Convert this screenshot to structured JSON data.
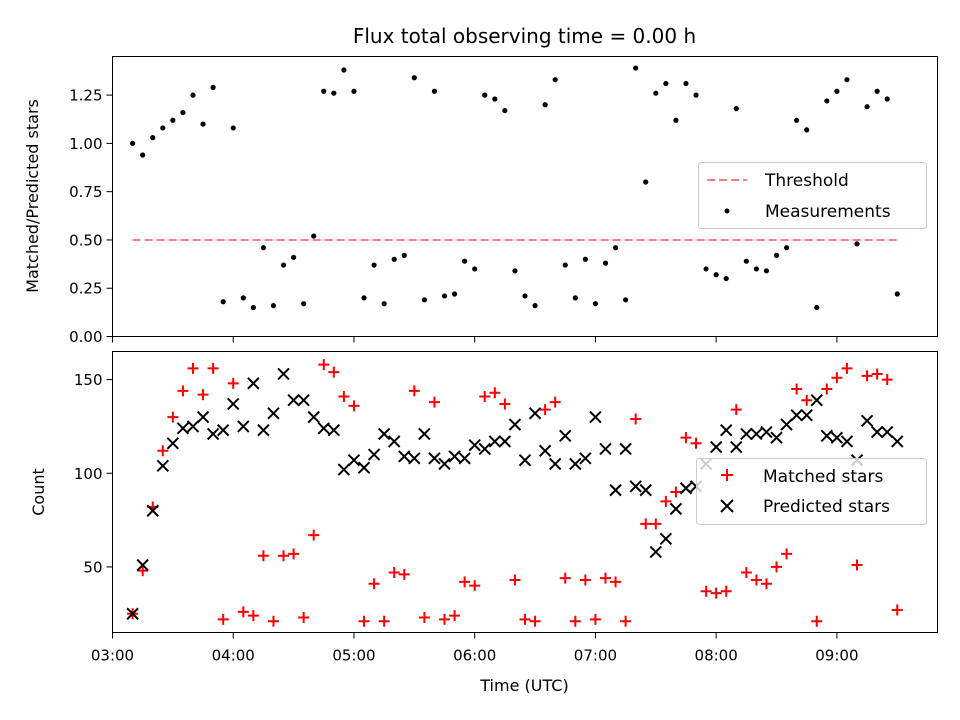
{
  "chart_data": [
    {
      "type": "scatter",
      "title": "Flux total observing time = 0.00 h",
      "xlabel": "",
      "ylabel": "Matched/Predicted stars",
      "ylim": [
        0,
        1.45
      ],
      "yticks": [
        "0.00",
        "0.25",
        "0.50",
        "0.75",
        "1.00",
        "1.25"
      ],
      "ytick_values": [
        0,
        0.25,
        0.5,
        0.75,
        1.0,
        1.25
      ],
      "legend_position": "center-right",
      "colors": {
        "threshold": "#ff7f7f",
        "measurements": "#000000"
      },
      "threshold": {
        "name": "Threshold",
        "x": [
          "03:10",
          "09:30"
        ],
        "y": 0.5
      },
      "series": [
        {
          "name": "Measurements",
          "x": [
            "03:10",
            "03:15",
            "03:20",
            "03:25",
            "03:30",
            "03:35",
            "03:40",
            "03:45",
            "03:50",
            "03:55",
            "04:00",
            "04:05",
            "04:10",
            "04:15",
            "04:20",
            "04:25",
            "04:30",
            "04:35",
            "04:40",
            "04:45",
            "04:50",
            "04:55",
            "05:00",
            "05:05",
            "05:10",
            "05:15",
            "05:20",
            "05:25",
            "05:30",
            "05:35",
            "05:40",
            "05:45",
            "05:50",
            "05:55",
            "06:00",
            "06:05",
            "06:10",
            "06:15",
            "06:20",
            "06:25",
            "06:30",
            "06:35",
            "06:40",
            "06:45",
            "06:50",
            "06:55",
            "07:00",
            "07:05",
            "07:10",
            "07:15",
            "07:20",
            "07:25",
            "07:30",
            "07:35",
            "07:40",
            "07:45",
            "07:50",
            "07:55",
            "08:00",
            "08:05",
            "08:10",
            "08:15",
            "08:20",
            "08:25",
            "08:30",
            "08:35",
            "08:40",
            "08:45",
            "08:50",
            "08:55",
            "09:00",
            "09:05",
            "09:10",
            "09:15",
            "09:20",
            "09:25",
            "09:30"
          ],
          "y": [
            1.0,
            0.94,
            1.03,
            1.08,
            1.12,
            1.16,
            1.25,
            1.1,
            1.29,
            0.18,
            1.08,
            0.2,
            0.15,
            0.46,
            0.16,
            0.37,
            0.41,
            0.17,
            0.52,
            1.27,
            1.26,
            1.38,
            1.27,
            0.2,
            0.37,
            0.17,
            0.4,
            0.42,
            1.34,
            0.19,
            1.27,
            0.21,
            0.22,
            0.39,
            0.35,
            1.25,
            1.23,
            1.17,
            0.34,
            0.21,
            0.16,
            1.2,
            1.33,
            0.37,
            0.2,
            0.4,
            0.17,
            0.38,
            0.46,
            0.19,
            1.39,
            0.8,
            1.26,
            1.31,
            1.12,
            1.31,
            1.25,
            0.35,
            0.32,
            0.3,
            1.18,
            0.39,
            0.35,
            0.34,
            0.42,
            0.46,
            1.12,
            1.07,
            0.15,
            1.22,
            1.27,
            1.33,
            0.48,
            1.19,
            1.27,
            1.23,
            0.22
          ]
        }
      ]
    },
    {
      "type": "scatter",
      "title": "",
      "xlabel": "Time (UTC)",
      "ylabel": "Count",
      "ylim": [
        15,
        165
      ],
      "yticks": [
        "50",
        "100",
        "150"
      ],
      "ytick_values": [
        50,
        100,
        150
      ],
      "xlim": [
        "03:00",
        "09:50"
      ],
      "xticks": [
        "03:00",
        "04:00",
        "05:00",
        "06:00",
        "07:00",
        "08:00",
        "09:00"
      ],
      "legend_position": "center-right",
      "colors": {
        "matched": "#ff0000",
        "predicted": "#000000"
      },
      "x": [
        "03:10",
        "03:15",
        "03:20",
        "03:25",
        "03:30",
        "03:35",
        "03:40",
        "03:45",
        "03:50",
        "03:55",
        "04:00",
        "04:05",
        "04:10",
        "04:15",
        "04:20",
        "04:25",
        "04:30",
        "04:35",
        "04:40",
        "04:45",
        "04:50",
        "04:55",
        "05:00",
        "05:05",
        "05:10",
        "05:15",
        "05:20",
        "05:25",
        "05:30",
        "05:35",
        "05:40",
        "05:45",
        "05:50",
        "05:55",
        "06:00",
        "06:05",
        "06:10",
        "06:15",
        "06:20",
        "06:25",
        "06:30",
        "06:35",
        "06:40",
        "06:45",
        "06:50",
        "06:55",
        "07:00",
        "07:05",
        "07:10",
        "07:15",
        "07:20",
        "07:25",
        "07:30",
        "07:35",
        "07:40",
        "07:45",
        "07:50",
        "07:55",
        "08:00",
        "08:05",
        "08:10",
        "08:15",
        "08:20",
        "08:25",
        "08:30",
        "08:35",
        "08:40",
        "08:45",
        "08:50",
        "08:55",
        "09:00",
        "09:05",
        "09:10",
        "09:15",
        "09:20",
        "09:25",
        "09:30"
      ],
      "series": [
        {
          "name": "Matched stars",
          "marker": "plus",
          "y": [
            25,
            48,
            82,
            112,
            130,
            144,
            156,
            142,
            156,
            22,
            148,
            26,
            24,
            56,
            21,
            56,
            57,
            23,
            67,
            158,
            154,
            141,
            136,
            21,
            41,
            21,
            47,
            46,
            144,
            23,
            138,
            22,
            24,
            42,
            40,
            141,
            143,
            137,
            43,
            22,
            21,
            134,
            138,
            44,
            21,
            43,
            22,
            44,
            42,
            21,
            129,
            73,
            73,
            85,
            90,
            119,
            116,
            37,
            36,
            37,
            134,
            47,
            43,
            41,
            50,
            57,
            145,
            139,
            21,
            145,
            151,
            156,
            51,
            152,
            153,
            150,
            27
          ]
        },
        {
          "name": "Predicted stars",
          "marker": "x",
          "y": [
            25,
            51,
            80,
            104,
            116,
            124,
            125,
            130,
            121,
            123,
            137,
            125,
            148,
            123,
            132,
            153,
            139,
            139,
            130,
            124,
            123,
            102,
            107,
            103,
            110,
            121,
            117,
            109,
            108,
            121,
            108,
            105,
            109,
            108,
            115,
            113,
            117,
            117,
            126,
            107,
            132,
            112,
            105,
            120,
            105,
            108,
            130,
            113,
            91,
            113,
            93,
            91,
            58,
            65,
            81,
            92,
            93,
            105,
            114,
            123,
            114,
            121,
            121,
            122,
            119,
            126,
            131,
            131,
            139,
            120,
            119,
            117,
            107,
            128,
            122,
            122,
            117
          ]
        }
      ]
    }
  ]
}
